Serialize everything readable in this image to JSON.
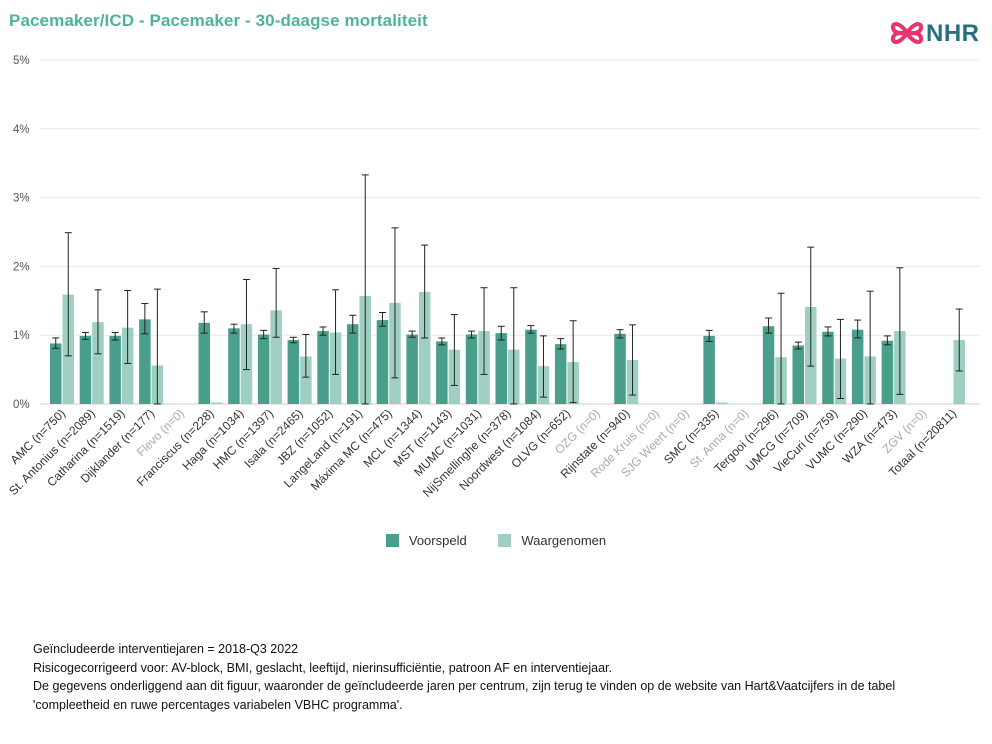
{
  "title": "Pacemaker/ICD - Pacemaker - 30-daagse mortaliteit",
  "logo": {
    "text": "NHR",
    "icon": "nhr-knot-icon",
    "colors": {
      "icon": "#e8336e",
      "text": "#2a6f80"
    }
  },
  "colors": {
    "title": "#4fb39a",
    "voorspeld": "#4a9e8c",
    "waargenomen": "#9fcfc3",
    "axis_text": "#555555",
    "zero_count_label": "#aaaaaa",
    "grid": "#e8e8e8",
    "error_bar": "#222222"
  },
  "legend": [
    {
      "label": "Voorspeld",
      "color": "#4a9e8c"
    },
    {
      "label": "Waargenomen",
      "color": "#9fcfc3"
    }
  ],
  "notes": [
    "Geïncludeerde interventiejaren = 2018-Q3 2022",
    "Risicogecorrigeerd voor: AV-block, BMI, geslacht, leeftijd, nierinsufficiëntie, patroon AF en interventiejaar.",
    "De gegevens onderliggend aan dit figuur, waaronder de geïncludeerde jaren per centrum, zijn terug te vinden op de website van Hart&Vaatcijfers in de tabel",
    "'compleetheid en ruwe percentages variabelen VBHC programma'."
  ],
  "chart_data": {
    "type": "bar",
    "ylim": [
      0,
      5
    ],
    "yticks": [
      "0%",
      "1%",
      "2%",
      "3%",
      "4%",
      "5%"
    ],
    "grid": true,
    "legend_position": "bottom",
    "categories": [
      "AMC (n=750)",
      "St. Antonius (n=2089)",
      "Catharina (n=1519)",
      "Dijklander (n=177)",
      "Flevo (n=0)",
      "Franciscus (n=228)",
      "Haga (n=1034)",
      "HMC (n=1397)",
      "Isala (n=2465)",
      "JBZ (n=1052)",
      "LangeLand (n=191)",
      "Máxima MC (n=475)",
      "MCL (n=1344)",
      "MST (n=1143)",
      "MUMC (n=1031)",
      "NijSmellinghe (n=378)",
      "Noordwest (n=1084)",
      "OLVG (n=652)",
      "OZG (n=0)",
      "Rijnstate (n=940)",
      "Rode Kruis (n=0)",
      "SJG Weert (n=0)",
      "SMC (n=335)",
      "St. Anna (n=0)",
      "Tergooi (n=296)",
      "UMCG (n=709)",
      "VieCuri (n=759)",
      "VUMC (n=290)",
      "WZA (n=473)",
      "ZGV (n=0)",
      "Totaal (n=20811)"
    ],
    "series": [
      {
        "name": "Voorspeld",
        "values": [
          0.88,
          0.99,
          0.99,
          1.23,
          null,
          1.18,
          1.1,
          1.01,
          0.93,
          1.06,
          1.16,
          1.22,
          1.01,
          0.91,
          1.01,
          1.03,
          1.08,
          0.87,
          null,
          1.02,
          null,
          null,
          0.99,
          null,
          1.13,
          0.85,
          1.05,
          1.08,
          0.92,
          null,
          null
        ],
        "ci_low": [
          0.81,
          0.94,
          0.93,
          1.02,
          null,
          1.03,
          1.03,
          0.95,
          0.89,
          1.0,
          1.03,
          1.13,
          0.97,
          0.86,
          0.96,
          0.93,
          1.03,
          0.8,
          null,
          0.96,
          null,
          null,
          0.91,
          null,
          1.03,
          0.8,
          0.99,
          0.96,
          0.86,
          null,
          null
        ],
        "ci_high": [
          0.96,
          1.04,
          1.04,
          1.46,
          null,
          1.34,
          1.16,
          1.07,
          0.97,
          1.12,
          1.29,
          1.33,
          1.06,
          0.96,
          1.06,
          1.13,
          1.14,
          0.95,
          null,
          1.08,
          null,
          null,
          1.07,
          null,
          1.25,
          0.9,
          1.12,
          1.22,
          0.99,
          null,
          null
        ]
      },
      {
        "name": "Waargenomen",
        "values": [
          1.59,
          1.19,
          1.11,
          0.56,
          null,
          0.0,
          1.16,
          1.36,
          0.69,
          1.04,
          1.57,
          1.47,
          1.63,
          0.79,
          1.06,
          0.79,
          0.55,
          0.61,
          null,
          0.64,
          null,
          null,
          0.0,
          null,
          0.68,
          1.41,
          0.66,
          0.69,
          1.06,
          null,
          0.93
        ],
        "ci_low": [
          0.7,
          0.73,
          0.59,
          0.0,
          null,
          null,
          0.5,
          0.97,
          0.39,
          0.43,
          0.0,
          0.38,
          0.96,
          0.27,
          0.43,
          0.0,
          0.1,
          0.02,
          null,
          0.13,
          null,
          null,
          null,
          null,
          0.0,
          0.55,
          0.08,
          0.0,
          0.14,
          null,
          0.48
        ],
        "ci_high": [
          2.49,
          1.66,
          1.65,
          1.67,
          null,
          null,
          1.81,
          1.97,
          1.01,
          1.66,
          3.33,
          2.56,
          2.31,
          1.3,
          1.69,
          1.69,
          0.99,
          1.21,
          null,
          1.15,
          null,
          null,
          null,
          null,
          1.61,
          2.28,
          1.23,
          1.64,
          1.98,
          null,
          1.38
        ]
      }
    ]
  }
}
